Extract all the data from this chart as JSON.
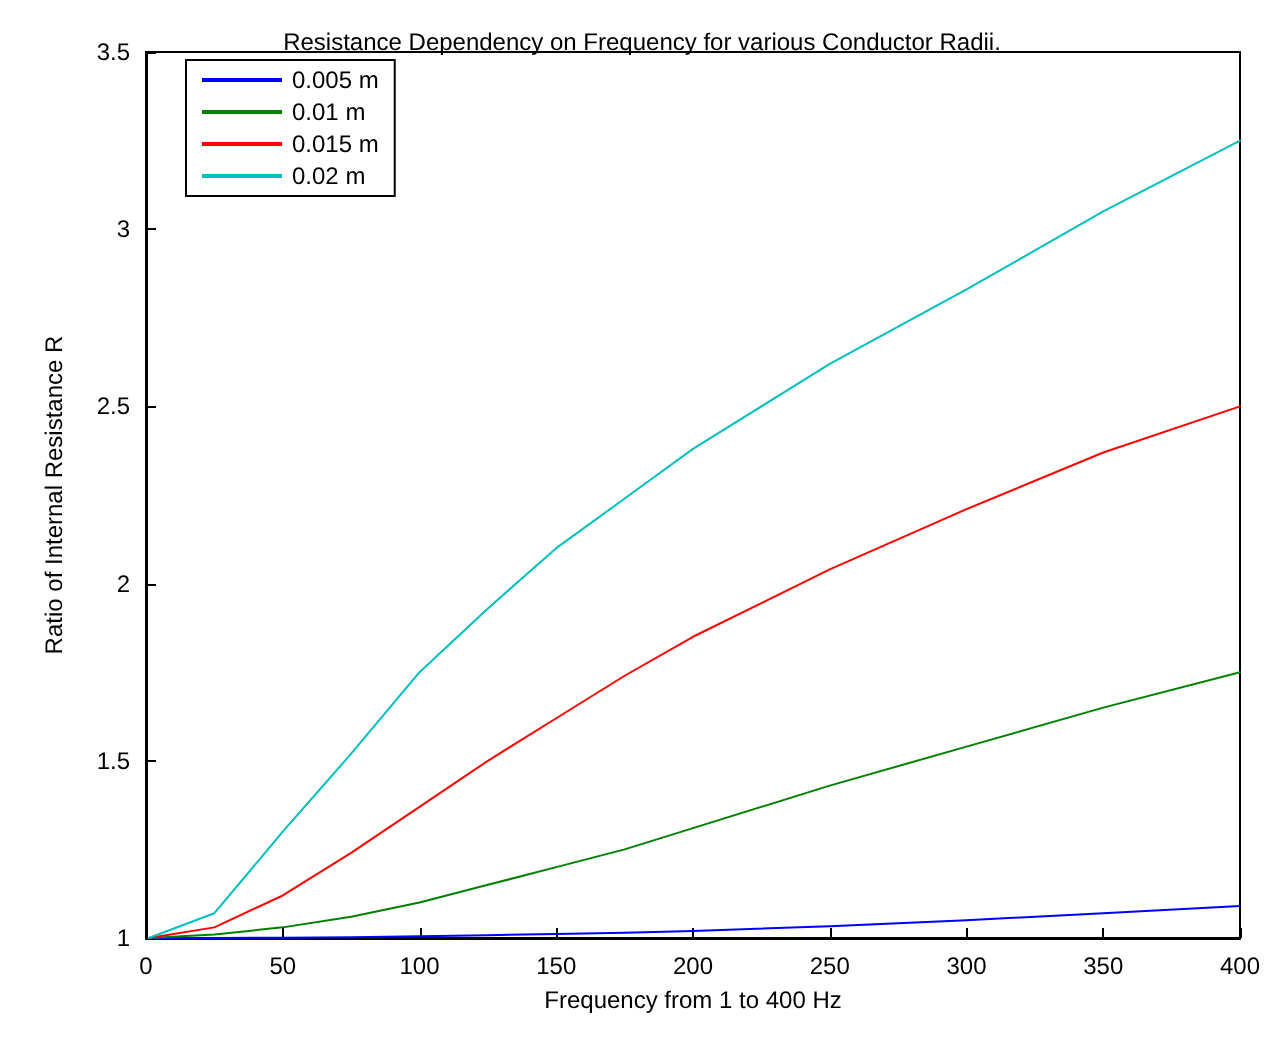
{
  "chart_data": {
    "type": "line",
    "title": "Resistance Dependency on Frequency for various Conductor Radii.",
    "xlabel": "Frequency from 1 to 400 Hz",
    "ylabel": "Ratio of Internal Resistance R",
    "x": [
      1,
      25,
      50,
      75,
      100,
      125,
      150,
      175,
      200,
      250,
      300,
      350,
      400
    ],
    "series": [
      {
        "name": "0.005 m",
        "color": "#0000ff",
        "values": [
          1,
          1,
          1.001,
          1.002,
          1.005,
          1.008,
          1.011,
          1.015,
          1.02,
          1.033,
          1.05,
          1.07,
          1.09
        ]
      },
      {
        "name": "0.01 m",
        "color": "#008000",
        "values": [
          1,
          1.01,
          1.03,
          1.06,
          1.1,
          1.15,
          1.2,
          1.25,
          1.31,
          1.43,
          1.54,
          1.65,
          1.75
        ]
      },
      {
        "name": "0.015 m",
        "color": "#ff0000",
        "values": [
          1,
          1.03,
          1.12,
          1.24,
          1.37,
          1.5,
          1.62,
          1.74,
          1.85,
          2.04,
          2.21,
          2.37,
          2.5
        ]
      },
      {
        "name": "0.02 m",
        "color": "#00bfbf",
        "values": [
          1,
          1.07,
          1.3,
          1.52,
          1.75,
          1.93,
          2.1,
          2.24,
          2.38,
          2.62,
          2.83,
          3.05,
          3.25
        ]
      }
    ],
    "xlim": [
      0,
      400
    ],
    "xticks": [
      0,
      50,
      100,
      150,
      200,
      250,
      300,
      350,
      400
    ],
    "ylim": [
      1,
      3.5
    ],
    "yticks": [
      1,
      1.5,
      2,
      2.5,
      3,
      3.5
    ],
    "grid": false,
    "legend": "top left",
    "marker": "none",
    "line_style": "solid"
  }
}
